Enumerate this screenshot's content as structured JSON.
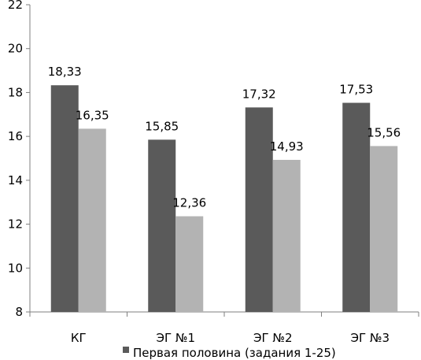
{
  "chart_data": {
    "type": "bar",
    "categories": [
      "КГ",
      "ЭГ №1",
      "ЭГ №2",
      "ЭГ №3"
    ],
    "series": [
      {
        "name": "Первая половина (задания 1-25)",
        "values": [
          18.33,
          15.85,
          17.32,
          17.53
        ],
        "labels": [
          "18,33",
          "15,85",
          "17,32",
          "17,53"
        ],
        "color": "#5a5a5a"
      },
      {
        "values": [
          16.35,
          12.36,
          14.93,
          15.56
        ],
        "labels": [
          "16,35",
          "12,36",
          "14,93",
          "15,56"
        ],
        "color": "#b3b3b3"
      }
    ],
    "ylim": [
      8,
      22
    ],
    "yticks": [
      8,
      10,
      12,
      14,
      16,
      18,
      20,
      22
    ],
    "grid": false,
    "legend": "bottom"
  }
}
